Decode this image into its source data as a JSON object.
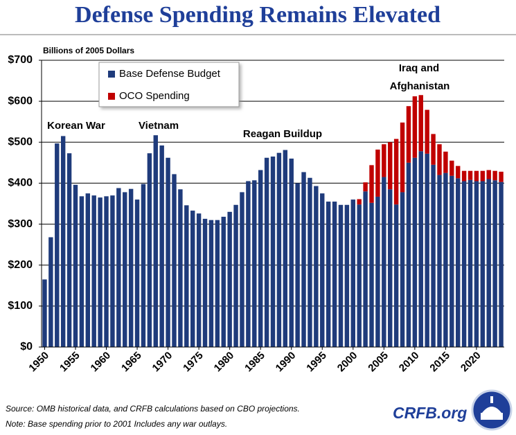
{
  "chart_data": {
    "type": "stacked-bar",
    "title": "Defense Spending Remains Elevated",
    "y_label": "Billions of 2005 Dollars",
    "annotations": [
      "Korean War",
      "Vietnam",
      "Reagan Buildup",
      "Iraq and",
      "Afghanistan"
    ],
    "x": [
      1950,
      1951,
      1952,
      1953,
      1954,
      1955,
      1956,
      1957,
      1958,
      1959,
      1960,
      1961,
      1962,
      1963,
      1964,
      1965,
      1966,
      1967,
      1968,
      1969,
      1970,
      1971,
      1972,
      1973,
      1974,
      1975,
      1976,
      1977,
      1978,
      1979,
      1980,
      1981,
      1982,
      1983,
      1984,
      1985,
      1986,
      1987,
      1988,
      1989,
      1990,
      1991,
      1992,
      1993,
      1994,
      1995,
      1996,
      1997,
      1998,
      1999,
      2000,
      2001,
      2002,
      2003,
      2004,
      2005,
      2006,
      2007,
      2008,
      2009,
      2010,
      2011,
      2012,
      2013,
      2014,
      2015,
      2016,
      2017,
      2018,
      2019,
      2020,
      2021,
      2022,
      2023,
      2024
    ],
    "xlim": [
      1949.5,
      2024.5
    ],
    "xticks": [
      1950,
      1955,
      1960,
      1965,
      1970,
      1975,
      1980,
      1985,
      1990,
      1995,
      2000,
      2005,
      2010,
      2015,
      2020
    ],
    "series": [
      {
        "name": "Base Defense Budget",
        "color": "#1f3b7b",
        "values": [
          165,
          268,
          497,
          515,
          473,
          396,
          368,
          375,
          370,
          365,
          368,
          370,
          388,
          378,
          386,
          360,
          398,
          473,
          517,
          492,
          462,
          422,
          385,
          346,
          333,
          326,
          313,
          310,
          310,
          318,
          330,
          347,
          378,
          405,
          407,
          432,
          462,
          465,
          474,
          481,
          460,
          400,
          427,
          413,
          393,
          375,
          355,
          355,
          347,
          347,
          360,
          348,
          380,
          352,
          367,
          415,
          385,
          348,
          378,
          450,
          462,
          478,
          472,
          445,
          420,
          425,
          418,
          412,
          405,
          408,
          405,
          405,
          410,
          407,
          403
        ]
      },
      {
        "name": "OCO Spending",
        "color": "#c00000",
        "values": [
          0,
          0,
          0,
          0,
          0,
          0,
          0,
          0,
          0,
          0,
          0,
          0,
          0,
          0,
          0,
          0,
          0,
          0,
          0,
          0,
          0,
          0,
          0,
          0,
          0,
          0,
          0,
          0,
          0,
          0,
          0,
          0,
          0,
          0,
          0,
          0,
          0,
          0,
          0,
          0,
          0,
          0,
          0,
          0,
          0,
          0,
          0,
          0,
          0,
          0,
          0,
          13,
          22,
          92,
          115,
          80,
          115,
          160,
          170,
          138,
          150,
          137,
          107,
          75,
          75,
          52,
          37,
          30,
          25,
          22,
          25,
          25,
          22,
          23,
          25
        ]
      }
    ],
    "ylim": [
      0,
      700
    ],
    "yticks": [
      {
        "value": 0,
        "label": "$0"
      },
      {
        "value": 100,
        "label": "$100"
      },
      {
        "value": 200,
        "label": "$200"
      },
      {
        "value": 300,
        "label": "$300"
      },
      {
        "value": 400,
        "label": "$400"
      },
      {
        "value": 500,
        "label": "$500"
      },
      {
        "value": 600,
        "label": "$600"
      },
      {
        "value": 700,
        "label": "$700"
      }
    ],
    "grid": true
  },
  "footer": {
    "source": "Source: OMB historical data, and CRFB calculations based on CBO projections.",
    "note": "Note: Base spending prior to 2001 Includes any war outlays.",
    "brand": "CRFB.org"
  }
}
